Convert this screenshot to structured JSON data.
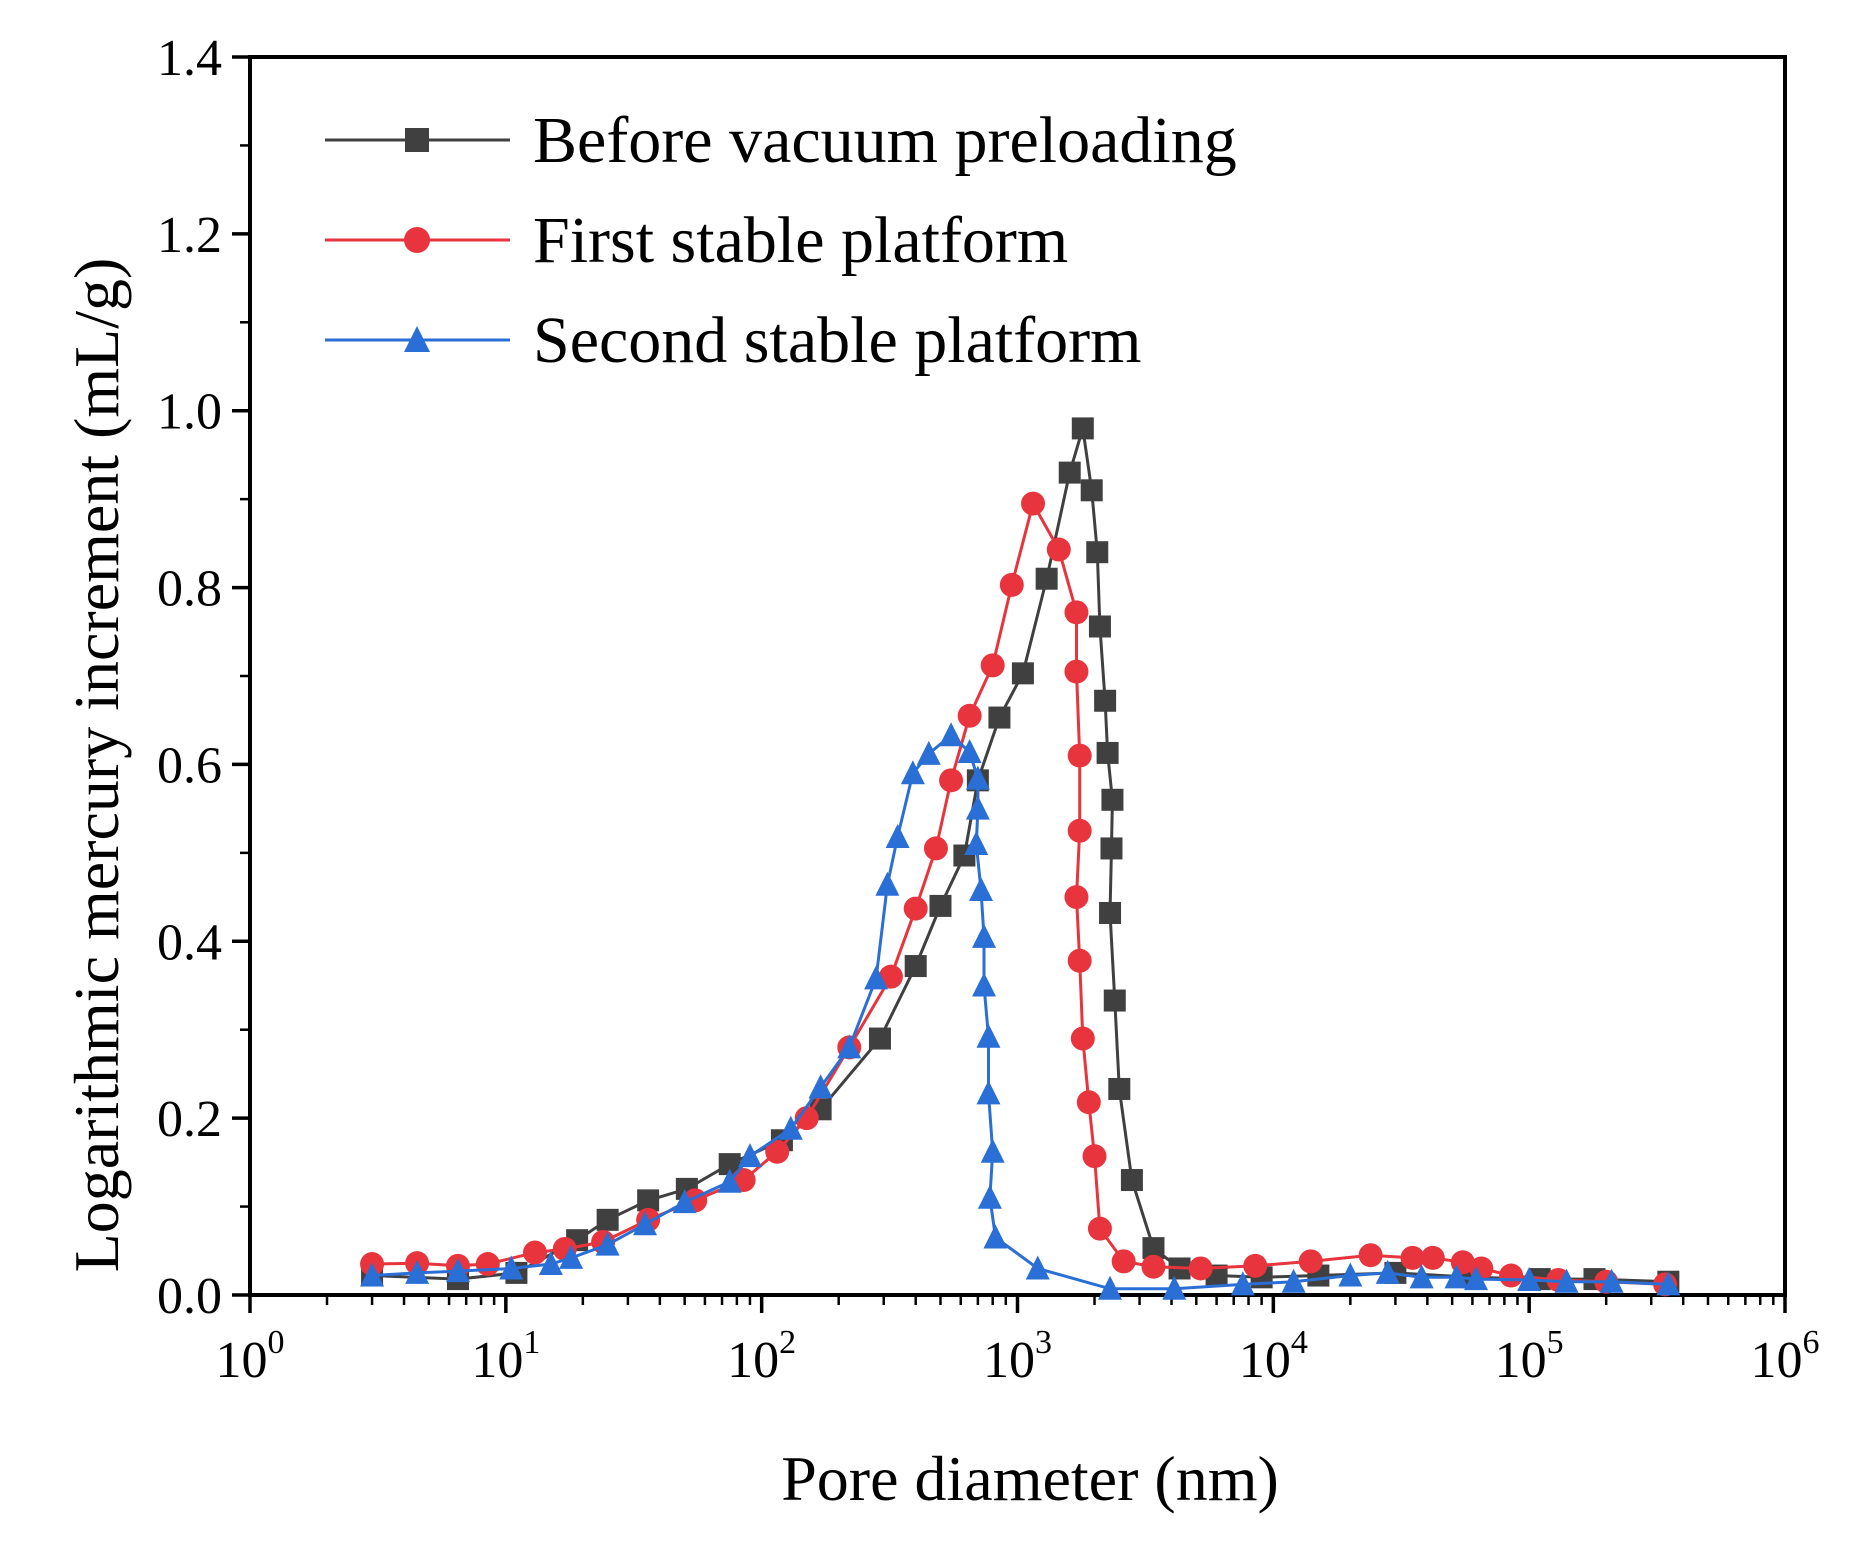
{
  "chart_data": {
    "type": "line",
    "xscale": "log",
    "xlabel": "Pore diameter (nm)",
    "ylabel": "Logarithmic mercury increment (mL/g)",
    "xlim": [
      1,
      1000000
    ],
    "ylim": [
      0,
      1.4
    ],
    "x_ticks": [
      {
        "base": "10",
        "exp": "0"
      },
      {
        "base": "10",
        "exp": "1"
      },
      {
        "base": "10",
        "exp": "2"
      },
      {
        "base": "10",
        "exp": "3"
      },
      {
        "base": "10",
        "exp": "4"
      },
      {
        "base": "10",
        "exp": "5"
      },
      {
        "base": "10",
        "exp": "6"
      }
    ],
    "y_ticks": [
      "0.0",
      "0.2",
      "0.4",
      "0.6",
      "0.8",
      "1.0",
      "1.2",
      "1.4"
    ],
    "grid": false,
    "legend_position": "top-left",
    "series": [
      {
        "name": "Before vacuum preloading",
        "color": "#404040",
        "marker": "square",
        "points": [
          [
            3,
            0.022
          ],
          [
            6.5,
            0.018
          ],
          [
            11,
            0.025
          ],
          [
            19,
            0.062
          ],
          [
            25,
            0.085
          ],
          [
            36,
            0.107
          ],
          [
            51,
            0.12
          ],
          [
            75,
            0.148
          ],
          [
            120,
            0.175
          ],
          [
            170,
            0.21
          ],
          [
            290,
            0.29
          ],
          [
            400,
            0.372
          ],
          [
            500,
            0.44
          ],
          [
            620,
            0.497
          ],
          [
            700,
            0.582
          ],
          [
            850,
            0.653
          ],
          [
            1050,
            0.703
          ],
          [
            1300,
            0.81
          ],
          [
            1600,
            0.93
          ],
          [
            1800,
            0.98
          ],
          [
            1950,
            0.91
          ],
          [
            2050,
            0.84
          ],
          [
            2100,
            0.756
          ],
          [
            2200,
            0.672
          ],
          [
            2250,
            0.613
          ],
          [
            2350,
            0.56
          ],
          [
            2330,
            0.505
          ],
          [
            2300,
            0.432
          ],
          [
            2400,
            0.333
          ],
          [
            2500,
            0.233
          ],
          [
            2800,
            0.13
          ],
          [
            3400,
            0.053
          ],
          [
            4300,
            0.03
          ],
          [
            6000,
            0.022
          ],
          [
            9000,
            0.02
          ],
          [
            15000,
            0.022
          ],
          [
            30000,
            0.025
          ],
          [
            60000,
            0.02
          ],
          [
            110000,
            0.018
          ],
          [
            180000,
            0.018
          ],
          [
            350000,
            0.015
          ]
        ]
      },
      {
        "name": "First stable platform",
        "color": "#e8343c",
        "marker": "circle",
        "points": [
          [
            3,
            0.035
          ],
          [
            4.5,
            0.036
          ],
          [
            6.5,
            0.033
          ],
          [
            8.5,
            0.035
          ],
          [
            13,
            0.048
          ],
          [
            17,
            0.052
          ],
          [
            24,
            0.06
          ],
          [
            36,
            0.085
          ],
          [
            55,
            0.107
          ],
          [
            85,
            0.13
          ],
          [
            115,
            0.162
          ],
          [
            150,
            0.2
          ],
          [
            220,
            0.28
          ],
          [
            320,
            0.36
          ],
          [
            400,
            0.437
          ],
          [
            480,
            0.505
          ],
          [
            550,
            0.582
          ],
          [
            650,
            0.655
          ],
          [
            800,
            0.712
          ],
          [
            950,
            0.803
          ],
          [
            1150,
            0.895
          ],
          [
            1450,
            0.843
          ],
          [
            1700,
            0.772
          ],
          [
            1700,
            0.705
          ],
          [
            1750,
            0.61
          ],
          [
            1750,
            0.525
          ],
          [
            1700,
            0.45
          ],
          [
            1750,
            0.378
          ],
          [
            1800,
            0.29
          ],
          [
            1900,
            0.218
          ],
          [
            2000,
            0.157
          ],
          [
            2100,
            0.075
          ],
          [
            2600,
            0.038
          ],
          [
            3400,
            0.032
          ],
          [
            5200,
            0.03
          ],
          [
            8500,
            0.033
          ],
          [
            14000,
            0.038
          ],
          [
            24000,
            0.045
          ],
          [
            35000,
            0.042
          ],
          [
            42000,
            0.042
          ],
          [
            55000,
            0.037
          ],
          [
            65000,
            0.03
          ],
          [
            85000,
            0.022
          ],
          [
            130000,
            0.017
          ],
          [
            200000,
            0.015
          ],
          [
            340000,
            0.012
          ]
        ]
      },
      {
        "name": "Second stable platform",
        "color": "#2a6fd6",
        "marker": "triangle",
        "points": [
          [
            3,
            0.022
          ],
          [
            4.5,
            0.025
          ],
          [
            6.5,
            0.027
          ],
          [
            10.5,
            0.03
          ],
          [
            15,
            0.035
          ],
          [
            18,
            0.042
          ],
          [
            25,
            0.057
          ],
          [
            35,
            0.08
          ],
          [
            50,
            0.105
          ],
          [
            75,
            0.128
          ],
          [
            90,
            0.157
          ],
          [
            130,
            0.188
          ],
          [
            170,
            0.235
          ],
          [
            220,
            0.28
          ],
          [
            280,
            0.358
          ],
          [
            310,
            0.464
          ],
          [
            340,
            0.518
          ],
          [
            390,
            0.59
          ],
          [
            450,
            0.612
          ],
          [
            550,
            0.633
          ],
          [
            650,
            0.614
          ],
          [
            700,
            0.584
          ],
          [
            700,
            0.55
          ],
          [
            690,
            0.51
          ],
          [
            720,
            0.458
          ],
          [
            740,
            0.405
          ],
          [
            740,
            0.35
          ],
          [
            770,
            0.292
          ],
          [
            770,
            0.228
          ],
          [
            800,
            0.162
          ],
          [
            780,
            0.11
          ],
          [
            820,
            0.065
          ],
          [
            1200,
            0.03
          ],
          [
            2300,
            0.007
          ],
          [
            4100,
            0.007
          ],
          [
            7600,
            0.012
          ],
          [
            12000,
            0.015
          ],
          [
            20000,
            0.022
          ],
          [
            28000,
            0.025
          ],
          [
            38000,
            0.02
          ],
          [
            52000,
            0.02
          ],
          [
            62000,
            0.018
          ],
          [
            100000,
            0.017
          ],
          [
            140000,
            0.015
          ],
          [
            210000,
            0.015
          ],
          [
            350000,
            0.012
          ]
        ]
      }
    ]
  }
}
